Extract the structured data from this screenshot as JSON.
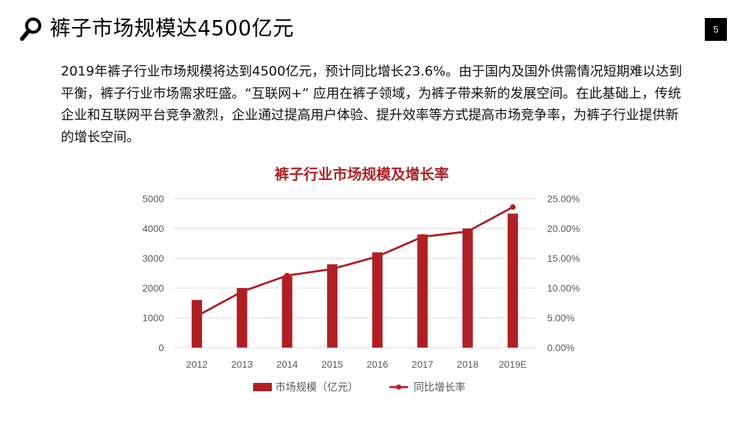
{
  "slide": {
    "title": "裤子市场规模达4500亿元",
    "page_number": "5",
    "icon": "search-icon",
    "body": "2019年裤子行业市场规模将达到4500亿元，预计同比增长23.6%。由于国内及国外供需情况短期难以达到平衡，裤子行业市场需求旺盛。“互联网+” 应用在裤子领域，为裤子带来新的发展空间。在此基础上，传统企业和互联网平台竞争激烈，企业通过提高用户体验、提升效率等方式提高市场竞争率，为裤子行业提供新的增长空间。"
  },
  "colors": {
    "accent": "#b01f24",
    "axis_text": "#595959",
    "gridline": "#d9d9d9"
  },
  "chart_data": {
    "type": "bar",
    "title": "裤子行业市场规模及增长率",
    "categories": [
      "2012",
      "2013",
      "2014",
      "2015",
      "2016",
      "2017",
      "2018",
      "2019E"
    ],
    "series": [
      {
        "name": "市场规模（亿元）",
        "type": "bar",
        "axis": "left",
        "values": [
          1600,
          2000,
          2400,
          2800,
          3200,
          3800,
          4000,
          4500
        ]
      },
      {
        "name": "同比增长率",
        "type": "line",
        "axis": "right",
        "values": [
          5.3,
          9.4,
          12.1,
          13.2,
          15.3,
          18.6,
          19.5,
          23.6
        ]
      }
    ],
    "y_left": {
      "min": 0,
      "max": 5000,
      "step": 1000,
      "ticks": [
        "0",
        "1000",
        "2000",
        "3000",
        "4000",
        "5000"
      ]
    },
    "y_right": {
      "min": 0,
      "max": 25,
      "step": 5,
      "ticks": [
        "0.00%",
        "5.00%",
        "10.00%",
        "15.00%",
        "20.00%",
        "25.00%"
      ]
    },
    "grid": true,
    "legend_position": "bottom"
  }
}
